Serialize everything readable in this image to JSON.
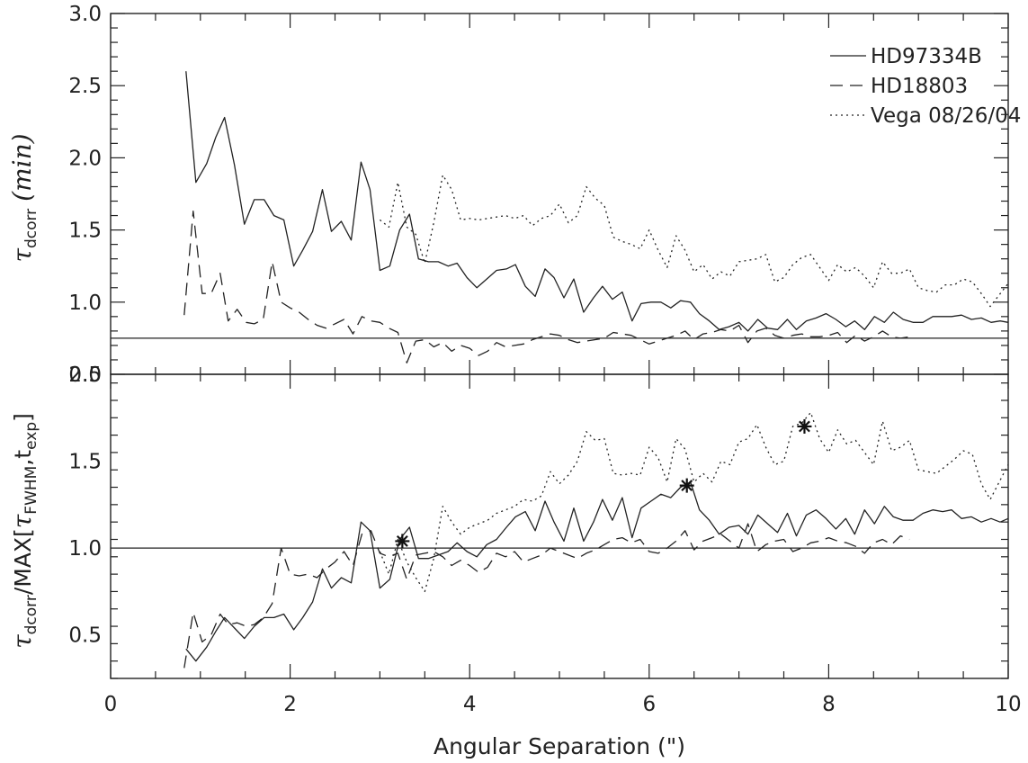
{
  "chart_data": [
    {
      "type": "line",
      "panel": "top",
      "title": "",
      "xlabel": "",
      "ylabel_parts": {
        "tau": "τ",
        "sub": "dcorr",
        "rest": "(min)"
      },
      "xlim": [
        0,
        10
      ],
      "ylim": [
        0.5,
        3.0
      ],
      "x_ticks": [
        0,
        2,
        4,
        6,
        8,
        10
      ],
      "y_ticks": [
        0.5,
        1.0,
        1.5,
        2.0,
        2.5,
        3.0
      ],
      "y_tick_labels": [
        "0.5",
        "1.0",
        "1.5",
        "2.0",
        "2.5",
        "3.0"
      ],
      "hline": 0.75,
      "legend_placement": "top-right",
      "series": [
        {
          "name": "HD97334B",
          "style": "solid",
          "x": [
            0.84,
            0.95,
            1.07,
            1.17,
            1.27,
            1.38,
            1.49,
            1.6,
            1.71,
            1.82,
            1.93,
            2.04,
            2.14,
            2.25,
            2.36,
            2.46,
            2.57,
            2.68,
            2.79,
            2.89,
            3.0,
            3.11,
            3.22,
            3.33,
            3.43,
            3.54,
            3.65,
            3.76,
            3.86,
            3.97,
            4.08,
            4.19,
            4.3,
            4.41,
            4.51,
            4.62,
            4.73,
            4.84,
            4.94,
            5.05,
            5.16,
            5.27,
            5.38,
            5.48,
            5.59,
            5.7,
            5.81,
            5.91,
            6.02,
            6.13,
            6.24,
            6.35,
            6.46,
            6.56,
            6.67,
            6.78,
            6.89,
            7.0,
            7.1,
            7.21,
            7.32,
            7.43,
            7.54,
            7.64,
            7.75,
            7.86,
            7.97,
            8.08,
            8.19,
            8.29,
            8.4,
            8.51,
            8.62,
            8.72,
            8.83,
            8.94,
            9.05,
            9.16,
            9.27,
            9.37,
            9.48,
            9.59,
            9.7,
            9.81,
            9.91,
            10.0
          ],
          "y": [
            2.6,
            1.83,
            1.96,
            2.14,
            2.28,
            1.95,
            1.54,
            1.71,
            1.71,
            1.6,
            1.57,
            1.25,
            1.36,
            1.49,
            1.78,
            1.49,
            1.56,
            1.43,
            1.97,
            1.78,
            1.22,
            1.25,
            1.5,
            1.61,
            1.3,
            1.28,
            1.28,
            1.25,
            1.27,
            1.17,
            1.1,
            1.16,
            1.22,
            1.23,
            1.26,
            1.11,
            1.04,
            1.23,
            1.17,
            1.03,
            1.16,
            0.93,
            1.03,
            1.11,
            1.02,
            1.07,
            0.87,
            0.99,
            1.0,
            1.0,
            0.96,
            1.01,
            1.0,
            0.92,
            0.87,
            0.81,
            0.83,
            0.86,
            0.8,
            0.88,
            0.82,
            0.81,
            0.88,
            0.81,
            0.87,
            0.89,
            0.92,
            0.88,
            0.83,
            0.87,
            0.81,
            0.9,
            0.86,
            0.93,
            0.88,
            0.86,
            0.86,
            0.9,
            0.9,
            0.9,
            0.91,
            0.88,
            0.89,
            0.86,
            0.87,
            0.86
          ]
        },
        {
          "name": "HD18803",
          "style": "dashed",
          "x": [
            0.82,
            0.92,
            1.02,
            1.12,
            1.22,
            1.31,
            1.41,
            1.51,
            1.6,
            1.7,
            1.8,
            1.9,
            2.0,
            2.1,
            2.2,
            2.3,
            2.4,
            2.5,
            2.6,
            2.7,
            2.8,
            2.9,
            3.0,
            3.1,
            3.2,
            3.3,
            3.4,
            3.5,
            3.6,
            3.7,
            3.8,
            3.9,
            4.0,
            4.1,
            4.2,
            4.3,
            4.4,
            4.5,
            4.6,
            4.7,
            4.8,
            4.9,
            5.0,
            5.1,
            5.2,
            5.3,
            5.4,
            5.5,
            5.6,
            5.7,
            5.8,
            5.9,
            6.0,
            6.1,
            6.2,
            6.3,
            6.4,
            6.5,
            6.6,
            6.7,
            6.8,
            6.9,
            7.0,
            7.1,
            7.2,
            7.3,
            7.4,
            7.5,
            7.6,
            7.7,
            7.8,
            7.9,
            8.0,
            8.1,
            8.2,
            8.3,
            8.4,
            8.5,
            8.6,
            8.7,
            8.8,
            8.9
          ],
          "y": [
            0.91,
            1.63,
            1.06,
            1.06,
            1.2,
            0.87,
            0.95,
            0.86,
            0.85,
            0.88,
            1.28,
            1.0,
            0.96,
            0.93,
            0.88,
            0.84,
            0.82,
            0.85,
            0.88,
            0.78,
            0.9,
            0.87,
            0.86,
            0.82,
            0.79,
            0.58,
            0.73,
            0.74,
            0.69,
            0.72,
            0.66,
            0.7,
            0.68,
            0.63,
            0.66,
            0.72,
            0.69,
            0.7,
            0.71,
            0.74,
            0.76,
            0.78,
            0.77,
            0.74,
            0.72,
            0.73,
            0.74,
            0.75,
            0.79,
            0.78,
            0.77,
            0.74,
            0.71,
            0.73,
            0.75,
            0.77,
            0.8,
            0.74,
            0.78,
            0.79,
            0.81,
            0.8,
            0.84,
            0.72,
            0.8,
            0.82,
            0.77,
            0.75,
            0.77,
            0.78,
            0.76,
            0.76,
            0.77,
            0.79,
            0.72,
            0.77,
            0.73,
            0.76,
            0.8,
            0.76,
            0.75,
            0.76
          ]
        },
        {
          "name": "Vega 08/26/04",
          "style": "dotted",
          "x": [
            3.0,
            3.1,
            3.2,
            3.3,
            3.4,
            3.5,
            3.6,
            3.7,
            3.8,
            3.9,
            4.0,
            4.1,
            4.2,
            4.3,
            4.4,
            4.5,
            4.6,
            4.7,
            4.8,
            4.9,
            5.0,
            5.1,
            5.2,
            5.3,
            5.4,
            5.5,
            5.6,
            5.7,
            5.8,
            5.9,
            6.0,
            6.1,
            6.2,
            6.3,
            6.4,
            6.5,
            6.6,
            6.7,
            6.8,
            6.9,
            7.0,
            7.1,
            7.2,
            7.3,
            7.4,
            7.5,
            7.6,
            7.7,
            7.8,
            7.9,
            8.0,
            8.1,
            8.2,
            8.3,
            8.4,
            8.5,
            8.6,
            8.7,
            8.8,
            8.9,
            9.0,
            9.1,
            9.2,
            9.3,
            9.4,
            9.5,
            9.6,
            9.7,
            9.8,
            9.9,
            10.0
          ],
          "y": [
            1.57,
            1.52,
            1.83,
            1.52,
            1.47,
            1.27,
            1.55,
            1.88,
            1.78,
            1.57,
            1.58,
            1.57,
            1.58,
            1.59,
            1.6,
            1.58,
            1.6,
            1.53,
            1.58,
            1.6,
            1.68,
            1.55,
            1.6,
            1.8,
            1.72,
            1.67,
            1.45,
            1.42,
            1.4,
            1.37,
            1.5,
            1.36,
            1.24,
            1.46,
            1.36,
            1.21,
            1.26,
            1.16,
            1.21,
            1.18,
            1.28,
            1.29,
            1.3,
            1.33,
            1.14,
            1.17,
            1.26,
            1.31,
            1.33,
            1.24,
            1.15,
            1.26,
            1.21,
            1.24,
            1.18,
            1.1,
            1.28,
            1.2,
            1.2,
            1.23,
            1.1,
            1.08,
            1.07,
            1.12,
            1.12,
            1.16,
            1.14,
            1.06,
            0.97,
            1.05,
            1.13
          ]
        }
      ]
    },
    {
      "type": "line",
      "panel": "bottom",
      "title": "",
      "xlabel": "Angular Separation (\")",
      "ylabel_parts": {
        "tau": "τ",
        "sub": "dcorr",
        "slash_max": "/MAX[",
        "tau2": "τ",
        "sub2": "FWHM",
        "comma_t": ",t",
        "sub3": "exp",
        "close": "]"
      },
      "xlim": [
        0,
        10
      ],
      "ylim": [
        0.25,
        2.0
      ],
      "x_ticks": [
        0,
        2,
        4,
        6,
        8,
        10
      ],
      "x_tick_labels": [
        "0",
        "2",
        "4",
        "6",
        "8",
        "10"
      ],
      "y_ticks": [
        0.5,
        1.0,
        1.5,
        2.0
      ],
      "y_tick_labels": [
        "0.5",
        "1.0",
        "1.5",
        "2.0"
      ],
      "hline": 1.0,
      "markers": [
        {
          "x": 3.25,
          "y": 1.04
        },
        {
          "x": 6.42,
          "y": 1.36
        },
        {
          "x": 7.73,
          "y": 1.7
        }
      ],
      "series": [
        {
          "name": "HD97334B",
          "style": "solid",
          "x": [
            0.84,
            0.95,
            1.07,
            1.17,
            1.27,
            1.38,
            1.49,
            1.6,
            1.71,
            1.82,
            1.93,
            2.04,
            2.14,
            2.25,
            2.36,
            2.46,
            2.57,
            2.68,
            2.79,
            2.89,
            3.0,
            3.11,
            3.22,
            3.33,
            3.43,
            3.54,
            3.65,
            3.76,
            3.86,
            3.97,
            4.08,
            4.19,
            4.3,
            4.41,
            4.51,
            4.62,
            4.73,
            4.84,
            4.94,
            5.05,
            5.16,
            5.27,
            5.38,
            5.48,
            5.59,
            5.7,
            5.81,
            5.91,
            6.02,
            6.13,
            6.24,
            6.35,
            6.46,
            6.56,
            6.67,
            6.78,
            6.89,
            7.0,
            7.1,
            7.21,
            7.32,
            7.43,
            7.54,
            7.64,
            7.75,
            7.86,
            7.97,
            8.08,
            8.19,
            8.29,
            8.4,
            8.51,
            8.62,
            8.72,
            8.83,
            8.94,
            9.05,
            9.16,
            9.27,
            9.37,
            9.48,
            9.59,
            9.7,
            9.81,
            9.91,
            10.0
          ],
          "y": [
            0.42,
            0.35,
            0.43,
            0.52,
            0.6,
            0.54,
            0.48,
            0.55,
            0.6,
            0.6,
            0.62,
            0.53,
            0.6,
            0.69,
            0.88,
            0.77,
            0.83,
            0.8,
            1.15,
            1.1,
            0.77,
            0.82,
            1.05,
            1.12,
            0.94,
            0.94,
            0.96,
            0.98,
            1.03,
            0.98,
            0.95,
            1.02,
            1.05,
            1.12,
            1.18,
            1.21,
            1.1,
            1.27,
            1.15,
            1.04,
            1.23,
            1.04,
            1.15,
            1.28,
            1.16,
            1.29,
            1.06,
            1.23,
            1.27,
            1.31,
            1.29,
            1.35,
            1.38,
            1.22,
            1.16,
            1.08,
            1.12,
            1.13,
            1.08,
            1.19,
            1.14,
            1.09,
            1.2,
            1.07,
            1.19,
            1.22,
            1.17,
            1.11,
            1.17,
            1.08,
            1.22,
            1.14,
            1.24,
            1.18,
            1.16,
            1.16,
            1.2,
            1.22,
            1.21,
            1.22,
            1.17,
            1.18,
            1.15,
            1.17,
            1.15,
            1.17
          ]
        },
        {
          "name": "HD18803",
          "style": "dashed",
          "x": [
            0.82,
            0.92,
            1.02,
            1.12,
            1.22,
            1.31,
            1.41,
            1.51,
            1.6,
            1.7,
            1.8,
            1.9,
            2.0,
            2.1,
            2.2,
            2.3,
            2.4,
            2.5,
            2.6,
            2.7,
            2.8,
            2.9,
            3.0,
            3.1,
            3.2,
            3.3,
            3.4,
            3.5,
            3.6,
            3.7,
            3.8,
            3.9,
            4.0,
            4.1,
            4.2,
            4.3,
            4.4,
            4.5,
            4.6,
            4.7,
            4.8,
            4.9,
            5.0,
            5.1,
            5.2,
            5.3,
            5.4,
            5.5,
            5.6,
            5.7,
            5.8,
            5.9,
            6.0,
            6.1,
            6.2,
            6.3,
            6.4,
            6.5,
            6.6,
            6.7,
            6.8,
            6.9,
            7.0,
            7.1,
            7.2,
            7.3,
            7.4,
            7.5,
            7.6,
            7.7,
            7.8,
            7.9,
            8.0,
            8.1,
            8.2,
            8.3,
            8.4,
            8.5,
            8.6,
            8.7,
            8.8,
            8.9
          ],
          "y": [
            0.31,
            0.63,
            0.46,
            0.5,
            0.62,
            0.56,
            0.57,
            0.55,
            0.56,
            0.6,
            0.68,
            1.0,
            0.85,
            0.84,
            0.85,
            0.83,
            0.88,
            0.92,
            0.98,
            0.9,
            1.08,
            1.1,
            0.97,
            0.95,
            0.97,
            0.82,
            0.96,
            0.97,
            0.98,
            0.95,
            0.9,
            0.93,
            0.9,
            0.86,
            0.89,
            0.97,
            0.95,
            0.98,
            0.92,
            0.94,
            0.96,
            1.0,
            0.98,
            0.96,
            0.94,
            0.97,
            0.99,
            1.02,
            1.05,
            1.06,
            1.03,
            1.05,
            0.98,
            0.97,
            1.0,
            1.04,
            1.1,
            0.99,
            1.04,
            1.06,
            1.08,
            1.04,
            1.0,
            1.14,
            0.98,
            1.02,
            1.04,
            1.05,
            0.98,
            1.0,
            1.03,
            1.04,
            1.06,
            1.04,
            1.03,
            1.01,
            0.97,
            1.03,
            1.05,
            1.02,
            1.07,
            1.05
          ]
        },
        {
          "name": "Vega 08/26/04",
          "style": "dotted",
          "x": [
            3.0,
            3.1,
            3.2,
            3.3,
            3.4,
            3.5,
            3.6,
            3.7,
            3.8,
            3.9,
            4.0,
            4.1,
            4.2,
            4.3,
            4.4,
            4.5,
            4.6,
            4.7,
            4.8,
            4.9,
            5.0,
            5.1,
            5.2,
            5.3,
            5.4,
            5.5,
            5.6,
            5.7,
            5.8,
            5.9,
            6.0,
            6.1,
            6.2,
            6.3,
            6.4,
            6.5,
            6.6,
            6.7,
            6.8,
            6.9,
            7.0,
            7.1,
            7.2,
            7.3,
            7.4,
            7.5,
            7.6,
            7.7,
            7.8,
            7.9,
            8.0,
            8.1,
            8.2,
            8.3,
            8.4,
            8.5,
            8.6,
            8.7,
            8.8,
            8.9,
            9.0,
            9.1,
            9.2,
            9.3,
            9.4,
            9.5,
            9.6,
            9.7,
            9.8,
            9.9,
            10.0
          ],
          "y": [
            0.98,
            0.85,
            1.05,
            0.92,
            0.83,
            0.75,
            0.94,
            1.24,
            1.15,
            1.08,
            1.12,
            1.14,
            1.16,
            1.2,
            1.22,
            1.24,
            1.28,
            1.27,
            1.3,
            1.44,
            1.37,
            1.42,
            1.5,
            1.67,
            1.62,
            1.63,
            1.43,
            1.42,
            1.43,
            1.42,
            1.58,
            1.52,
            1.38,
            1.63,
            1.57,
            1.38,
            1.43,
            1.38,
            1.5,
            1.48,
            1.61,
            1.63,
            1.71,
            1.58,
            1.48,
            1.5,
            1.7,
            1.72,
            1.78,
            1.63,
            1.55,
            1.68,
            1.6,
            1.62,
            1.55,
            1.48,
            1.73,
            1.56,
            1.58,
            1.62,
            1.45,
            1.44,
            1.43,
            1.47,
            1.51,
            1.56,
            1.54,
            1.37,
            1.28,
            1.38,
            1.48
          ]
        }
      ]
    }
  ]
}
